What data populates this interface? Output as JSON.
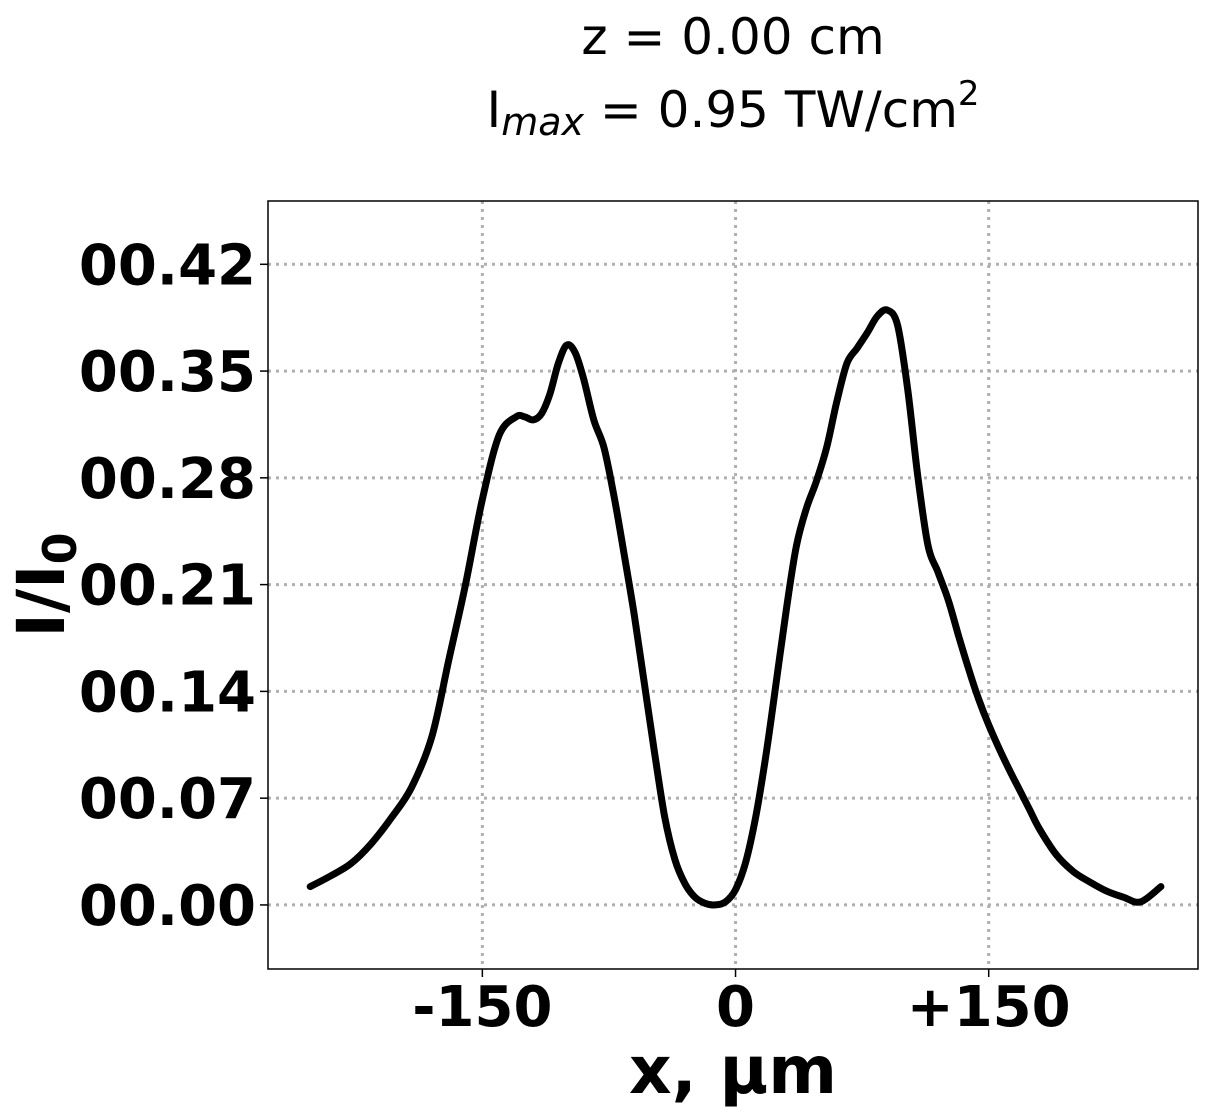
{
  "chart_data": {
    "type": "line",
    "title_line1": "z = 0.00 cm",
    "title_line2": {
      "prefix": "I",
      "subscript": "max",
      "middle": " = 0.95 TW/cm",
      "superscript": "2"
    },
    "xlabel": "x, μm",
    "ylabel": {
      "base": "I/I",
      "subscript": "0"
    },
    "x_ticks": [
      {
        "value": -150,
        "label": "-150"
      },
      {
        "value": 0,
        "label": "0"
      },
      {
        "value": 150,
        "label": "+150"
      }
    ],
    "y_ticks": [
      {
        "value": 0.0,
        "label": "00.00"
      },
      {
        "value": 0.07,
        "label": "00.07"
      },
      {
        "value": 0.14,
        "label": "00.14"
      },
      {
        "value": 0.21,
        "label": "00.21"
      },
      {
        "value": 0.28,
        "label": "00.28"
      },
      {
        "value": 0.35,
        "label": "00.35"
      },
      {
        "value": 0.42,
        "label": "00.42"
      }
    ],
    "xlim": [
      -277,
      274
    ],
    "ylim": [
      -0.042,
      0.4615
    ],
    "grid": true,
    "series": [
      {
        "color": "#000000",
        "x": [
          -252,
          -240,
          -228,
          -216,
          -204,
          -192,
          -180,
          -170,
          -160,
          -150,
          -140,
          -130,
          -125,
          -120,
          -115,
          -110,
          -105,
          -100,
          -95,
          -90,
          -84,
          -78,
          -72,
          -66,
          -60,
          -54,
          -48,
          -42,
          -36,
          -30,
          -24,
          -18,
          -12,
          -6,
          0,
          6,
          12,
          18,
          24,
          30,
          36,
          42,
          48,
          54,
          60,
          66,
          72,
          78,
          84,
          90,
          96,
          102,
          108,
          114,
          120,
          126,
          132,
          138,
          144,
          150,
          156,
          162,
          168,
          174,
          180,
          190,
          200,
          210,
          220,
          230,
          240,
          252
        ],
        "y": [
          0.012,
          0.019,
          0.027,
          0.04,
          0.057,
          0.077,
          0.11,
          0.16,
          0.21,
          0.266,
          0.308,
          0.32,
          0.32,
          0.318,
          0.322,
          0.335,
          0.355,
          0.367,
          0.362,
          0.345,
          0.318,
          0.3,
          0.268,
          0.23,
          0.19,
          0.145,
          0.1,
          0.058,
          0.03,
          0.014,
          0.005,
          0.001,
          0.0,
          0.002,
          0.01,
          0.028,
          0.058,
          0.098,
          0.145,
          0.193,
          0.235,
          0.26,
          0.278,
          0.3,
          0.33,
          0.355,
          0.365,
          0.375,
          0.386,
          0.39,
          0.38,
          0.338,
          0.281,
          0.236,
          0.218,
          0.2,
          0.177,
          0.155,
          0.135,
          0.118,
          0.103,
          0.089,
          0.076,
          0.063,
          0.05,
          0.033,
          0.022,
          0.015,
          0.009,
          0.005,
          0.002,
          0.012
        ]
      }
    ]
  }
}
